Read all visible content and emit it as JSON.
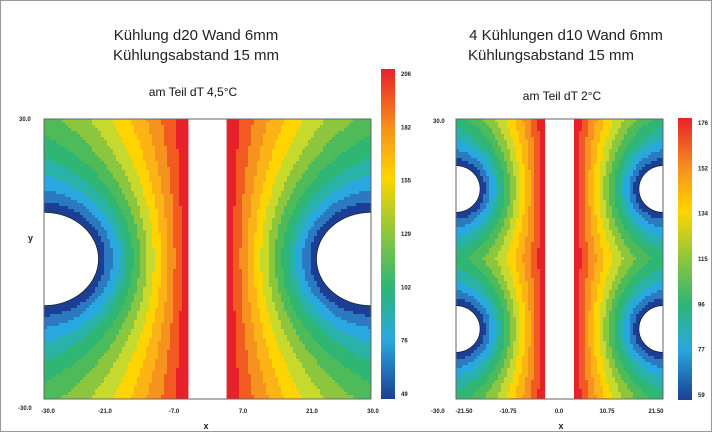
{
  "chart_data": [
    {
      "type": "heatmap",
      "title": [
        "Kühlung d20  Wand 6mm",
        "Kühlungsabstand 15 mm"
      ],
      "subtitle": "am Teil dT 4,5°C",
      "xlabel": "x",
      "ylabel": "y",
      "xlim": [
        -30.0,
        30.0
      ],
      "ylim": [
        -30.0,
        30.0
      ],
      "xticks": [
        "-30.0",
        "-21.0",
        "-7.0",
        "7.0",
        "21.0",
        "30.0"
      ],
      "yticks_top": "30.0",
      "yticks_bottom": "-30.0",
      "colorbar_ticks": [
        "206",
        "182",
        "155",
        "129",
        "102",
        "76",
        "49"
      ],
      "colorbar_range": [
        49,
        206
      ],
      "slot_halfwidth": 3.5,
      "cooling_holes": [
        {
          "x": -30.0,
          "y": 0.0,
          "r": 10.0
        },
        {
          "x": 30.0,
          "y": 0.0,
          "r": 10.0
        }
      ],
      "max_value": 206,
      "min_value": 49
    },
    {
      "type": "heatmap",
      "title": [
        "4 Kühlungen d10  Wand 6mm",
        "Kühlungsabstand 15 mm"
      ],
      "subtitle": "am Teil dT 2°C",
      "xlabel": "x",
      "ylabel": "",
      "xlim": [
        -21.5,
        21.5
      ],
      "ylim": [
        -30.0,
        30.0
      ],
      "xticks": [
        "-21.50",
        "-10.75",
        "0.0",
        "10.75",
        "21.50"
      ],
      "yticks_top": "30.0",
      "yticks_bottom": "-30.0",
      "colorbar_ticks": [
        "176",
        "152",
        "134",
        "115",
        "96",
        "77",
        "59"
      ],
      "colorbar_range": [
        59,
        176
      ],
      "slot_halfwidth": 3.0,
      "cooling_holes": [
        {
          "x": -21.5,
          "y": 15.0,
          "r": 5.0
        },
        {
          "x": -21.5,
          "y": -15.0,
          "r": 5.0
        },
        {
          "x": 21.5,
          "y": 15.0,
          "r": 5.0
        },
        {
          "x": 21.5,
          "y": -15.0,
          "r": 5.0
        }
      ],
      "max_value": 176,
      "min_value": 59
    }
  ]
}
